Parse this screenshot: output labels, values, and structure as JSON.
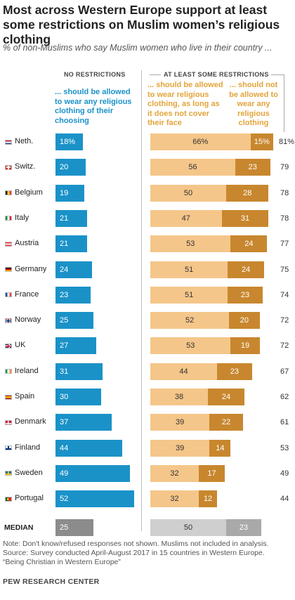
{
  "title": "Most across Western Europe support at least some restrictions on Muslim women’s religious clothing",
  "subtitle": "% of non-Muslims who say Muslim women who live in their country ...",
  "headers": {
    "no_restrictions": "NO RESTRICTIONS",
    "some_restrictions": "AT LEAST SOME RESTRICTIONS"
  },
  "descriptions": {
    "allowed_any": "... should be allowed to wear any religious clothing of their choosing",
    "allowed_not_face": "... should be allowed to wear religious clothing, as long as it does not cover their face",
    "not_allowed": "... should not be allowed to wear any religious clothing"
  },
  "colors": {
    "blue": "#1a92c8",
    "light_orange": "#f5c68a",
    "dark_orange": "#c8872e",
    "median_gray": "#8c8c8c",
    "median_light": "#cfcfcf",
    "median_mid": "#a9a9a9"
  },
  "chart_data": {
    "type": "bar",
    "categories": [
      "Neth.",
      "Switz.",
      "Belgium",
      "Italy",
      "Austria",
      "Germany",
      "France",
      "Norway",
      "UK",
      "Ireland",
      "Spain",
      "Denmark",
      "Finland",
      "Sweden",
      "Portugal"
    ],
    "series": [
      {
        "name": "... should be allowed to wear any religious clothing of their choosing",
        "values": [
          18,
          20,
          19,
          21,
          21,
          24,
          23,
          25,
          27,
          31,
          30,
          37,
          44,
          49,
          52
        ]
      },
      {
        "name": "... should be allowed to wear religious clothing, as long as it does not cover their face",
        "values": [
          66,
          56,
          50,
          47,
          53,
          51,
          51,
          52,
          53,
          44,
          38,
          39,
          39,
          32,
          32
        ]
      },
      {
        "name": "... should not be allowed to wear any religious clothing",
        "values": [
          15,
          23,
          28,
          31,
          24,
          24,
          23,
          20,
          19,
          23,
          24,
          22,
          14,
          17,
          12
        ]
      }
    ],
    "totals": [
      81,
      79,
      78,
      78,
      77,
      75,
      74,
      72,
      72,
      67,
      62,
      61,
      53,
      49,
      44
    ],
    "value_labels": {
      "first_row": [
        "18%",
        "66%",
        "15%",
        "81%"
      ]
    },
    "median": {
      "label": "MEDIAN",
      "values": [
        25,
        50,
        23
      ]
    }
  },
  "flags": [
    "netherlands-flag",
    "switzerland-flag",
    "belgium-flag",
    "italy-flag",
    "austria-flag",
    "germany-flag",
    "france-flag",
    "norway-flag",
    "uk-flag",
    "ireland-flag",
    "spain-flag",
    "denmark-flag",
    "finland-flag",
    "sweden-flag",
    "portugal-flag"
  ],
  "note": {
    "line1": "Note: Don't know/refused responses not shown. Muslims not included in analysis.",
    "line2": "Source: Survey conducted April-August 2017 in 15 countries in Western Europe.",
    "line3": "“Being Christian in Western Europe”"
  },
  "brand": "PEW RESEARCH CENTER"
}
